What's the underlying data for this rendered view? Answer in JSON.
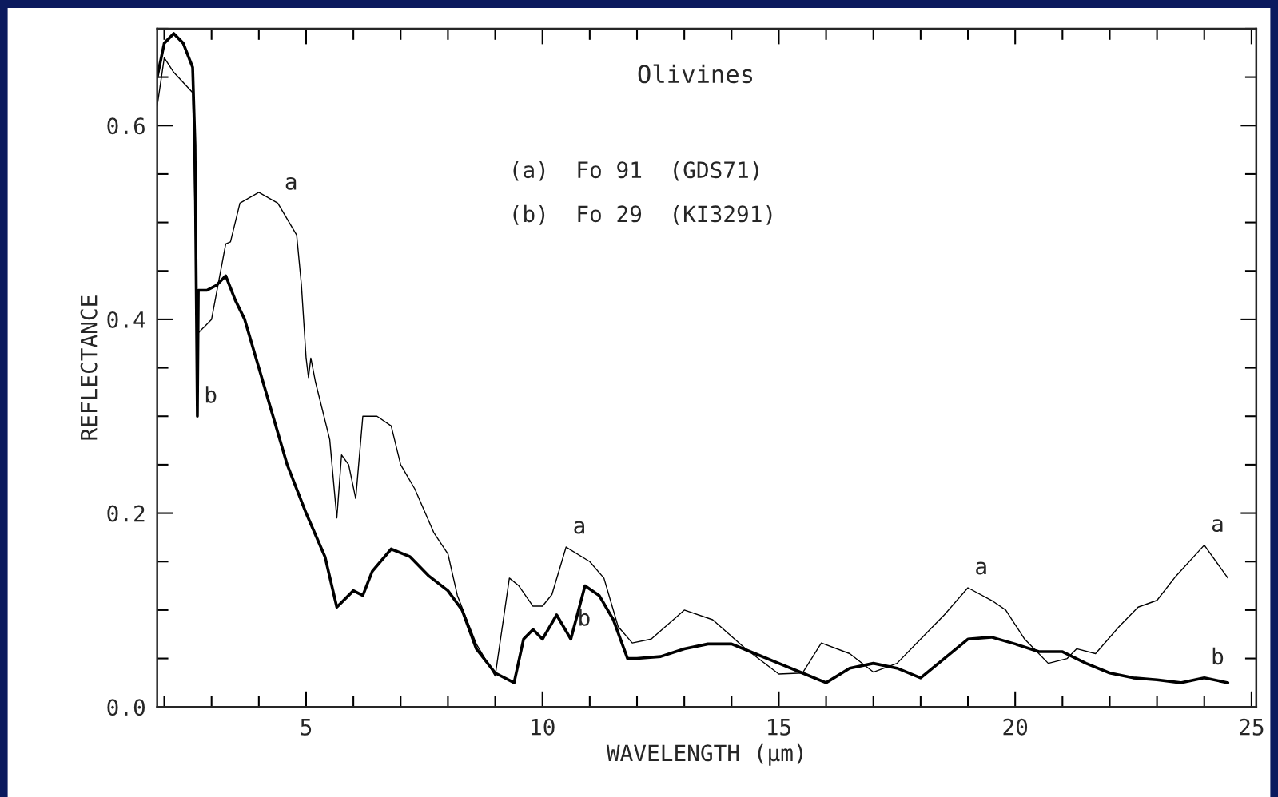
{
  "chart_data": {
    "type": "line",
    "title": "Olivines",
    "xlabel": "WAVELENGTH (µm)",
    "ylabel": "REFLECTANCE",
    "xlim": [
      1.85,
      25.1
    ],
    "ylim": [
      0,
      0.7
    ],
    "xticks": [
      5,
      10,
      15,
      20,
      25
    ],
    "yticks": [
      {
        "value": 0,
        "label": "0.0"
      },
      {
        "value": 0.2,
        "label": "0.2"
      },
      {
        "value": 0.4,
        "label": "0.4"
      },
      {
        "value": 0.6,
        "label": "0.6"
      }
    ],
    "grid": false,
    "legend": false,
    "series": [
      {
        "color": "#000000",
        "x": [
          1.85,
          2.0,
          2.2,
          2.6,
          2.7,
          3.0,
          3.3,
          3.4,
          3.6,
          4.0,
          4.4,
          4.8,
          4.9,
          5.0,
          5.05,
          5.1,
          5.2,
          5.5,
          5.65,
          5.75,
          5.9,
          6.05,
          6.2,
          6.5,
          6.8,
          7.0,
          7.3,
          7.7,
          8.0,
          8.2,
          8.6,
          9.0,
          9.3,
          9.5,
          9.8,
          10.0,
          10.2,
          10.5,
          11.0,
          11.3,
          11.6,
          11.9,
          12.3,
          13.0,
          13.6,
          14.3,
          15.0,
          15.5,
          15.9,
          16.5,
          17.0,
          17.5,
          18.0,
          18.5,
          19.0,
          19.5,
          19.8,
          20.2,
          20.7,
          21.1,
          21.3,
          21.7,
          22.2,
          22.6,
          23.0,
          23.4,
          24.0,
          24.5
        ],
        "values": [
          0.62,
          0.67,
          0.655,
          0.634,
          0.385,
          0.4,
          0.478,
          0.48,
          0.52,
          0.531,
          0.52,
          0.487,
          0.436,
          0.36,
          0.34,
          0.36,
          0.335,
          0.276,
          0.195,
          0.26,
          0.25,
          0.215,
          0.3,
          0.3,
          0.29,
          0.25,
          0.225,
          0.18,
          0.158,
          0.115,
          0.065,
          0.032,
          0.133,
          0.125,
          0.104,
          0.104,
          0.116,
          0.165,
          0.15,
          0.133,
          0.083,
          0.066,
          0.07,
          0.1,
          0.09,
          0.06,
          0.034,
          0.035,
          0.066,
          0.055,
          0.036,
          0.045,
          0.07,
          0.095,
          0.123,
          0.11,
          0.1,
          0.07,
          0.045,
          0.05,
          0.06,
          0.055,
          0.083,
          0.103,
          0.11,
          0.135,
          0.167,
          0.133
        ]
      },
      {
        "color": "#000000",
        "x": [
          1.85,
          2.0,
          2.2,
          2.4,
          2.6,
          2.65,
          2.7,
          2.72,
          2.9,
          3.1,
          3.3,
          3.5,
          3.7,
          4.0,
          4.3,
          4.6,
          5.0,
          5.4,
          5.65,
          6.0,
          6.2,
          6.4,
          6.8,
          7.2,
          7.6,
          8.0,
          8.3,
          8.6,
          9.0,
          9.4,
          9.6,
          9.8,
          10.0,
          10.3,
          10.6,
          10.9,
          11.2,
          11.5,
          11.8,
          12.0,
          12.5,
          13.0,
          13.5,
          14.0,
          14.5,
          15.0,
          15.5,
          16.0,
          16.5,
          17.0,
          17.5,
          18.0,
          18.5,
          19.0,
          19.5,
          20.0,
          20.5,
          21.0,
          21.5,
          22.0,
          22.5,
          23.0,
          23.5,
          24.0,
          24.5
        ],
        "values": [
          0.65,
          0.685,
          0.695,
          0.685,
          0.66,
          0.58,
          0.3,
          0.43,
          0.43,
          0.435,
          0.445,
          0.42,
          0.4,
          0.35,
          0.3,
          0.25,
          0.2,
          0.155,
          0.103,
          0.12,
          0.115,
          0.14,
          0.163,
          0.155,
          0.135,
          0.12,
          0.1,
          0.06,
          0.035,
          0.025,
          0.07,
          0.08,
          0.07,
          0.095,
          0.07,
          0.125,
          0.115,
          0.09,
          0.05,
          0.05,
          0.052,
          0.06,
          0.065,
          0.065,
          0.055,
          0.045,
          0.035,
          0.025,
          0.04,
          0.045,
          0.04,
          0.03,
          0.05,
          0.07,
          0.072,
          0.065,
          0.057,
          0.057,
          0.045,
          0.035,
          0.03,
          0.028,
          0.025,
          0.03,
          0.025
        ]
      }
    ],
    "annotations": [
      "(a)  Fo 91  (GDS71)",
      "(b)  Fo 29  (KI3291)",
      {
        "text": "a",
        "x": 4.4,
        "y": 0.52
      },
      {
        "text": "b",
        "x": 2.7,
        "y": 0.3
      },
      {
        "text": "a",
        "x": 10.5,
        "y": 0.165
      },
      {
        "text": "b",
        "x": 10.6,
        "y": 0.07
      },
      {
        "text": "a",
        "x": 19.0,
        "y": 0.123
      },
      {
        "text": "a",
        "x": 24.0,
        "y": 0.167
      },
      {
        "text": "b",
        "x": 24.0,
        "y": 0.03
      }
    ]
  }
}
